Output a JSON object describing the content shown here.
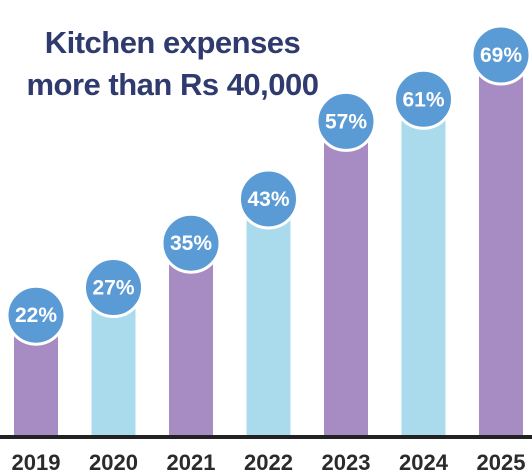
{
  "chart_data": {
    "type": "bar",
    "title_line1": "Kitchen expenses",
    "title_line2": "more than Rs 40,000",
    "categories": [
      "2019",
      "2020",
      "2021",
      "2022",
      "2023",
      "2024",
      "2025"
    ],
    "values": [
      22,
      27,
      35,
      43,
      57,
      61,
      69
    ],
    "data_labels": [
      "22%",
      "27%",
      "35%",
      "43%",
      "57%",
      "61%",
      "69%"
    ],
    "bar_colors": [
      "#a78cc4",
      "#a9dbec",
      "#a78cc4",
      "#a9dbec",
      "#a78cc4",
      "#a9dbec",
      "#a78cc4"
    ],
    "bubble_color": "#5b9bd5",
    "title_color": "#2f3a6e",
    "axis_color": "#222222",
    "ylim": [
      0,
      69
    ],
    "grid": false,
    "legend": "none"
  }
}
